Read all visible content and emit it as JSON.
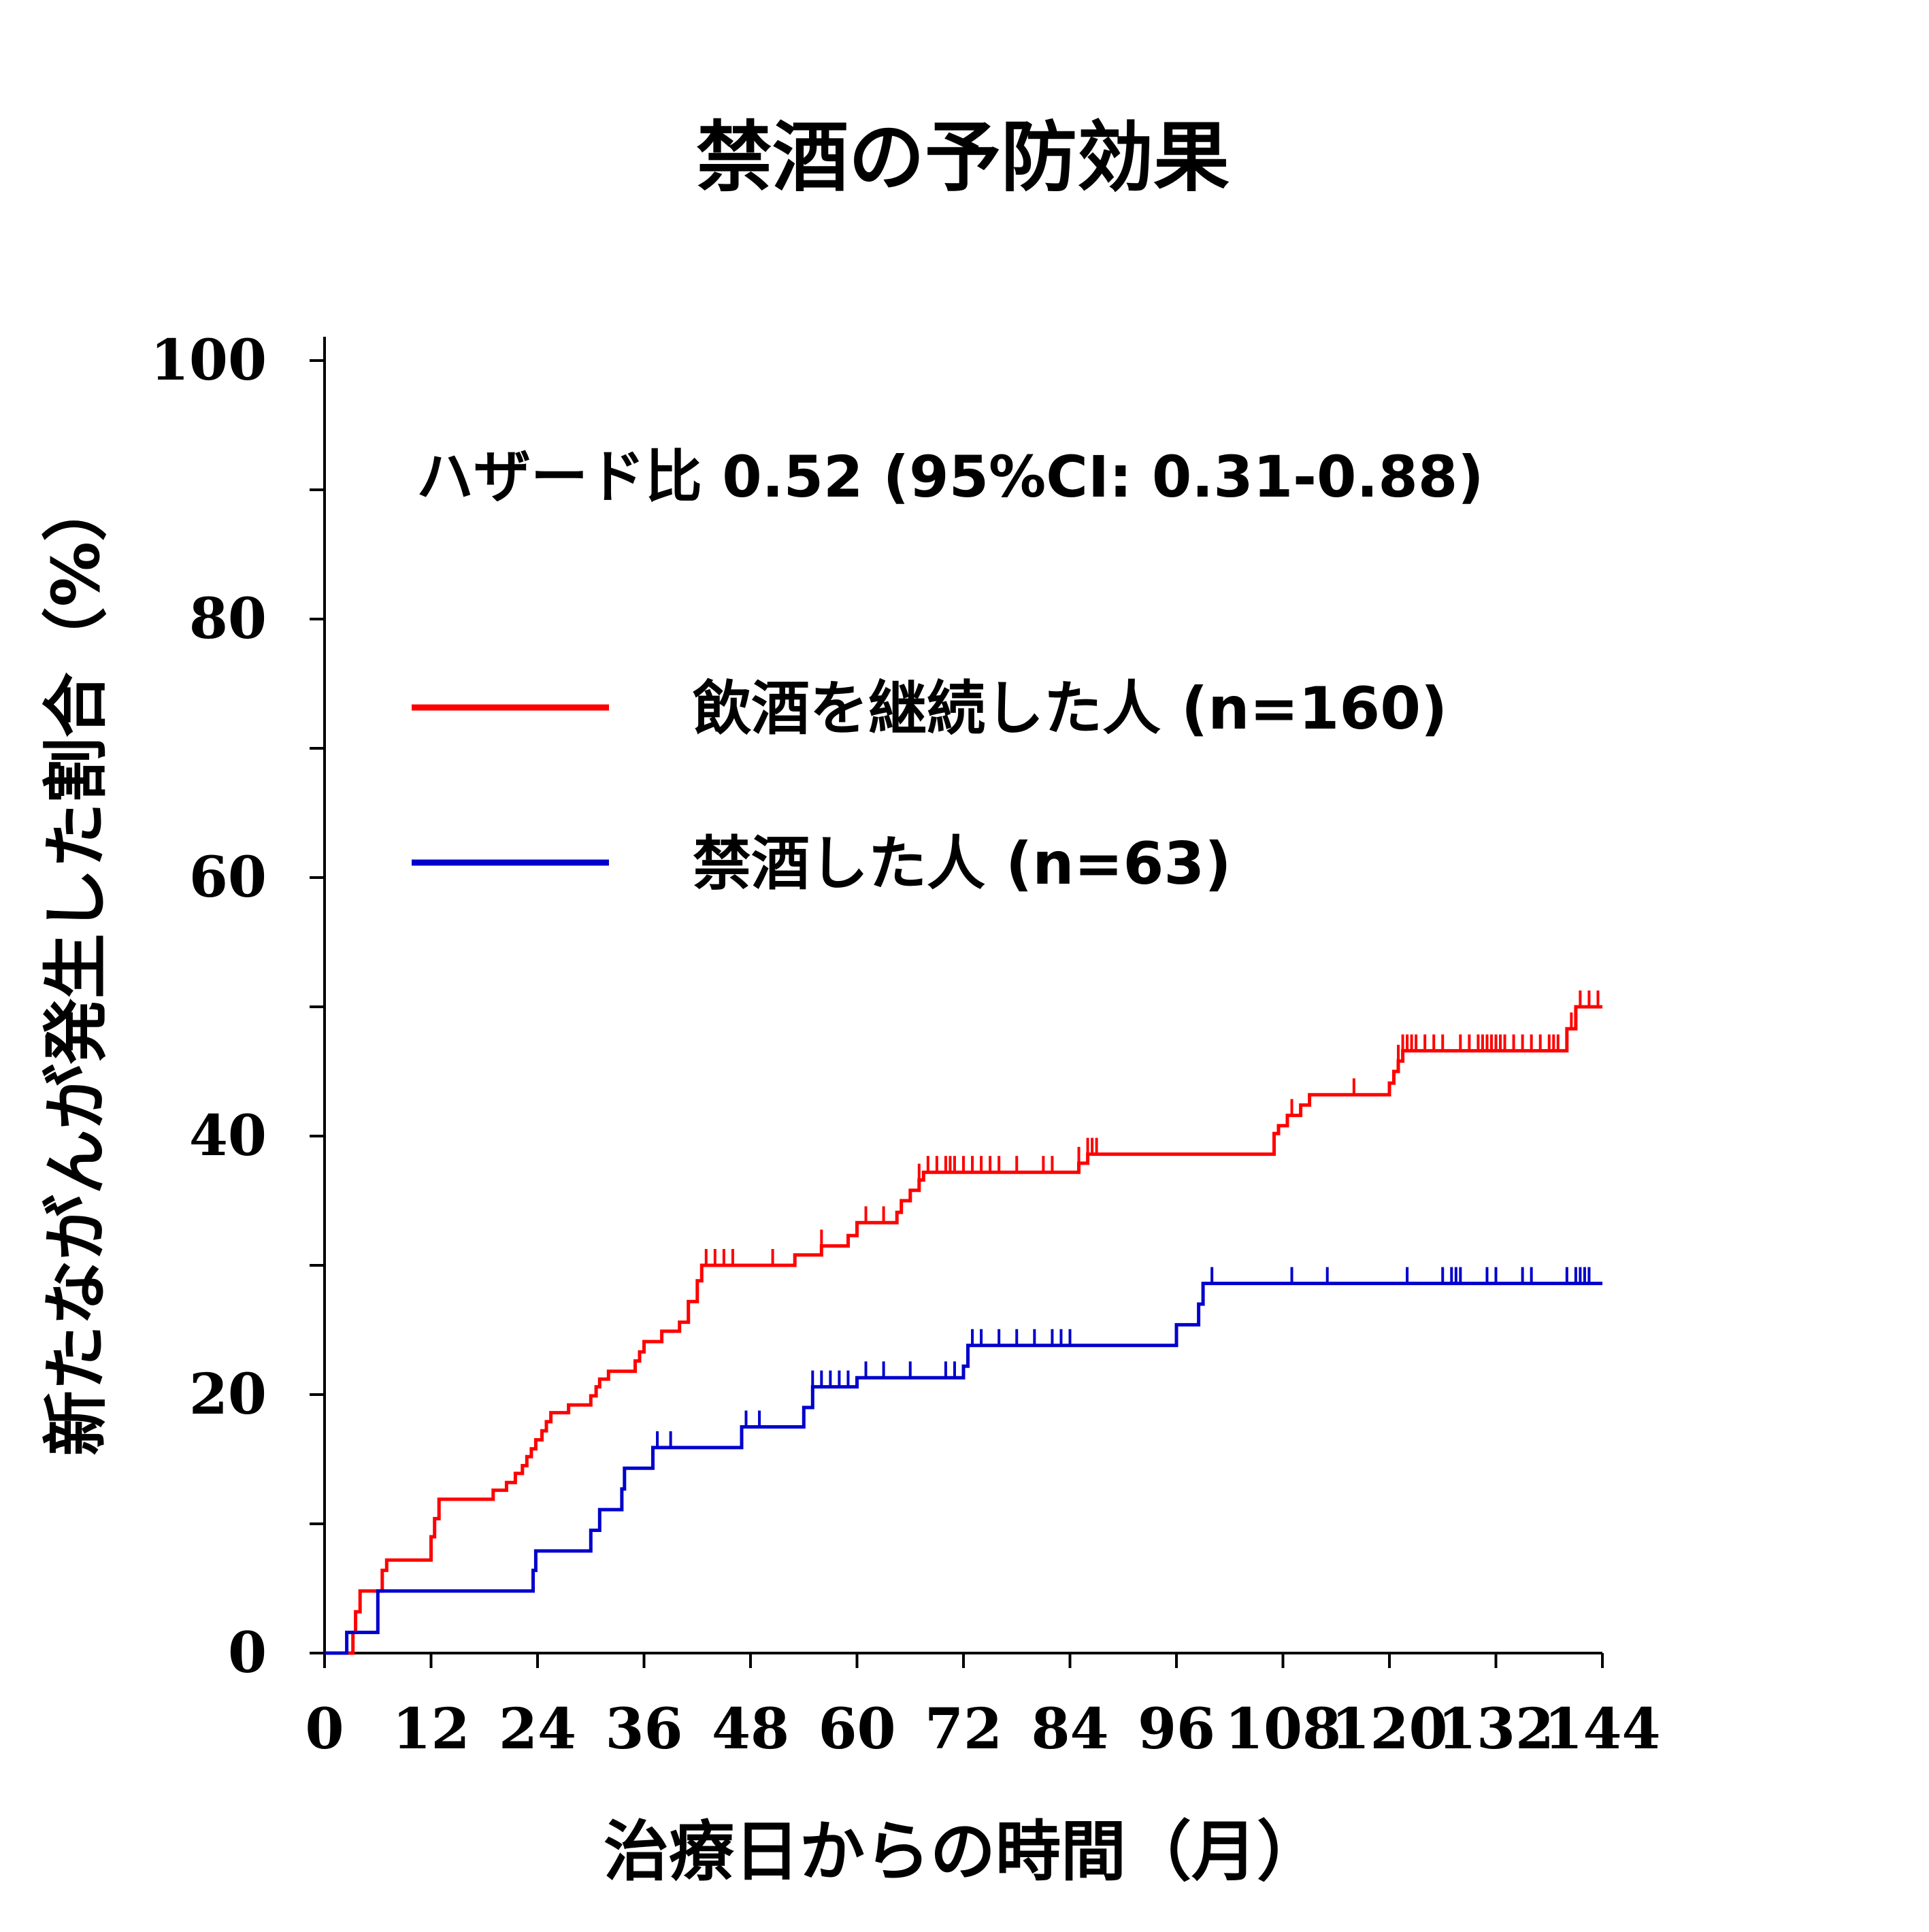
{
  "chart_data": {
    "type": "line",
    "step": true,
    "title": "禁酒の予防効果",
    "xlabel": "治療日からの時間（月）",
    "ylabel": "新たながんが発生した割合（%）",
    "xlim": [
      0,
      144
    ],
    "ylim": [
      0,
      100
    ],
    "xticks": [
      0,
      12,
      24,
      36,
      48,
      60,
      72,
      84,
      96,
      108,
      120,
      132,
      144
    ],
    "yticks": [
      0,
      20,
      40,
      60,
      80,
      100
    ],
    "yminor_step": 10,
    "grid": false,
    "annotation": "ハザード比 0.52 (95%CI: 0.31-0.88)",
    "legend_position": "top",
    "series": [
      {
        "name": "飲酒を継続した人 (n=160)",
        "color": "#ff0000",
        "points": [
          [
            0,
            0
          ],
          [
            3,
            0
          ],
          [
            3.2,
            1.6
          ],
          [
            3.5,
            3.2
          ],
          [
            4,
            4.8
          ],
          [
            6.5,
            6.4
          ],
          [
            7,
            7.2
          ],
          [
            12,
            9
          ],
          [
            12.4,
            10.4
          ],
          [
            12.9,
            11.9
          ],
          [
            19,
            12.6
          ],
          [
            20.5,
            13.2
          ],
          [
            21.5,
            13.9
          ],
          [
            22.3,
            14.5
          ],
          [
            22.8,
            15.2
          ],
          [
            23.3,
            15.8
          ],
          [
            23.8,
            16.5
          ],
          [
            24.5,
            17.2
          ],
          [
            25,
            17.9
          ],
          [
            25.5,
            18.6
          ],
          [
            27.5,
            19.2
          ],
          [
            30,
            19.9
          ],
          [
            30.6,
            20.6
          ],
          [
            31,
            21.2
          ],
          [
            32,
            21.8
          ],
          [
            35,
            22.6
          ],
          [
            35.5,
            23.3
          ],
          [
            36,
            24.1
          ],
          [
            38,
            24.9
          ],
          [
            40,
            25.6
          ],
          [
            41,
            27.2
          ],
          [
            42,
            28.8
          ],
          [
            42.5,
            30
          ],
          [
            47,
            30
          ],
          [
            53,
            30.8
          ],
          [
            56,
            31.5
          ],
          [
            59,
            32.3
          ],
          [
            60,
            33.3
          ],
          [
            64.5,
            34.1
          ],
          [
            65,
            35
          ],
          [
            66,
            35.8
          ],
          [
            67,
            36.6
          ],
          [
            67.5,
            37.2
          ],
          [
            69.5,
            37.2
          ],
          [
            85,
            37.9
          ],
          [
            86,
            38.6
          ],
          [
            107,
            40.2
          ],
          [
            107.5,
            40.8
          ],
          [
            108.5,
            41.6
          ],
          [
            110,
            42.4
          ],
          [
            111,
            43.2
          ],
          [
            120,
            44.1
          ],
          [
            120.5,
            45
          ],
          [
            121,
            45.8
          ],
          [
            121.5,
            46.6
          ],
          [
            122,
            46.6
          ],
          [
            139,
            46.6
          ],
          [
            140,
            48.3
          ],
          [
            141,
            50
          ],
          [
            144,
            50
          ]
        ],
        "censor_x": [
          43,
          44,
          45,
          46,
          50.5,
          56,
          61,
          63,
          67,
          68,
          69,
          70,
          70.5,
          71,
          72,
          73,
          74,
          75,
          76,
          78,
          81,
          82,
          85,
          86,
          86.5,
          87,
          109,
          116,
          121,
          121.5,
          122,
          122.5,
          123,
          124,
          125,
          126,
          128,
          129,
          130,
          130.5,
          131,
          131.5,
          132,
          132.5,
          133,
          134,
          135,
          136,
          137,
          138,
          138.5,
          139,
          140.5,
          141.5,
          142.5,
          143.5
        ]
      },
      {
        "name": "禁酒した人 (n=63)",
        "color": "#0000cc",
        "points": [
          [
            0,
            0
          ],
          [
            2.5,
            0
          ],
          [
            2.5,
            1.6
          ],
          [
            6,
            1.6
          ],
          [
            6,
            4.8
          ],
          [
            23.5,
            4.8
          ],
          [
            23.5,
            6.4
          ],
          [
            23.8,
            7.9
          ],
          [
            30,
            7.9
          ],
          [
            30,
            9.5
          ],
          [
            31,
            11.1
          ],
          [
            33.5,
            12.7
          ],
          [
            33.8,
            14.3
          ],
          [
            37,
            14.3
          ],
          [
            37,
            15.9
          ],
          [
            47,
            15.9
          ],
          [
            47,
            17.5
          ],
          [
            54,
            17.5
          ],
          [
            54,
            19
          ],
          [
            55,
            20.6
          ],
          [
            60,
            20.6
          ],
          [
            60,
            21.3
          ],
          [
            72,
            21.3
          ],
          [
            72,
            22.2
          ],
          [
            72.5,
            23.8
          ],
          [
            96,
            23.8
          ],
          [
            96,
            25.4
          ],
          [
            98.5,
            27
          ],
          [
            99,
            28.6
          ],
          [
            99.2,
            28.6
          ],
          [
            144,
            28.6
          ]
        ],
        "censor_x": [
          37.5,
          39,
          47.5,
          49,
          55,
          56,
          57,
          58,
          59,
          61,
          63,
          66,
          70,
          71,
          73,
          74,
          76,
          78,
          80,
          82,
          83,
          84,
          100,
          109,
          113,
          122,
          126,
          127,
          127.5,
          128,
          131,
          132,
          135,
          136,
          140,
          141,
          141.5,
          142,
          142.5
        ]
      }
    ]
  }
}
